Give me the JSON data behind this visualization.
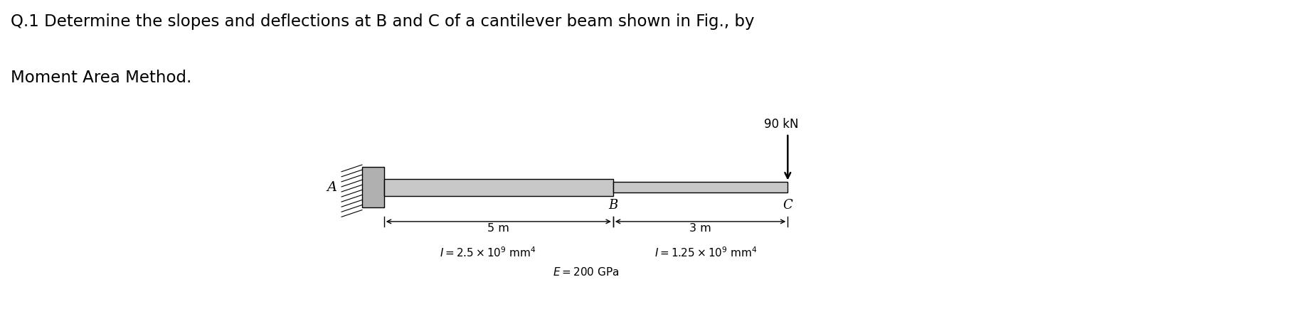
{
  "title_line1": "Q.1 Determine the slopes and deflections at B and C of a cantilever beam shown in Fig., by",
  "title_line2": "Moment Area Method.",
  "title_bg_color": "#dce3ef",
  "title_text_color": "#000000",
  "title_fontsize": 16.5,
  "diagram_bg_color": "#d8d8d8",
  "load_label": "90 kN",
  "label_A": "A",
  "label_B": "B",
  "label_C": "C",
  "dim_AB": "5 m",
  "dim_BC": "3 m",
  "wall_color": "#b0b0b0",
  "beam_color": "#c8c8c8",
  "fig_width": 18.26,
  "fig_height": 4.66,
  "dpi": 100
}
